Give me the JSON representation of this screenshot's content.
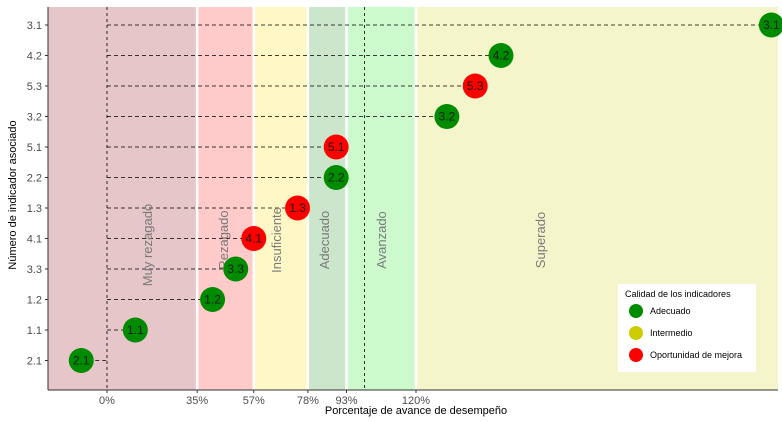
{
  "chart_data": {
    "type": "scatter",
    "title": "",
    "xlabel": "Porcentaje de avance de desempeño",
    "ylabel": "Número de indicador asociado",
    "x_tick_labels": [
      "0%",
      "35%",
      "57%",
      "78%",
      "93%",
      "120%"
    ],
    "x_ticks": [
      0,
      35,
      57,
      78,
      93,
      120
    ],
    "xlim": [
      -23,
      264
    ],
    "categories": [
      "2.1",
      "1.1",
      "1.2",
      "3.3",
      "4.1",
      "1.3",
      "2.2",
      "5.1",
      "3.2",
      "5.3",
      "4.2",
      "3.1"
    ],
    "bands": [
      {
        "label": "Muy rezagado",
        "from": -23,
        "to": 35,
        "color": "#e6c6c9"
      },
      {
        "label": "Rezagado",
        "from": 35,
        "to": 57,
        "color": "#ffcaca"
      },
      {
        "label": "Insuficiente",
        "from": 57,
        "to": 78,
        "color": "#fff8c6"
      },
      {
        "label": "Adecuado",
        "from": 78,
        "to": 93,
        "color": "#cce6cc"
      },
      {
        "label": "Avanzado",
        "from": 93,
        "to": 120,
        "color": "#ccfacc"
      },
      {
        "label": "Superado",
        "from": 120,
        "to": 264,
        "color": "#f5f5cc"
      }
    ],
    "points": [
      {
        "label": "2.1",
        "x": -10,
        "quality": "Adecuado"
      },
      {
        "label": "1.1",
        "x": 11,
        "quality": "Adecuado"
      },
      {
        "label": "1.2",
        "x": 41,
        "quality": "Adecuado"
      },
      {
        "label": "3.3",
        "x": 50,
        "quality": "Adecuado"
      },
      {
        "label": "4.1",
        "x": 57,
        "quality": "Oportunidad de mejora"
      },
      {
        "label": "1.3",
        "x": 74,
        "quality": "Oportunidad de mejora"
      },
      {
        "label": "2.2",
        "x": 89,
        "quality": "Adecuado"
      },
      {
        "label": "5.1",
        "x": 89,
        "quality": "Oportunidad de mejora"
      },
      {
        "label": "3.2",
        "x": 132,
        "quality": "Adecuado"
      },
      {
        "label": "5.3",
        "x": 143,
        "quality": "Oportunidad de mejora"
      },
      {
        "label": "4.2",
        "x": 153,
        "quality": "Adecuado"
      },
      {
        "label": "3.1",
        "x": 258,
        "quality": "Adecuado"
      }
    ],
    "legend": {
      "title": "Calidad de los indicadores",
      "placement": "bottom-right",
      "entries": [
        {
          "label": "Adecuado",
          "color": "#008b00"
        },
        {
          "label": "Intermedio",
          "color": "#cdcd00"
        },
        {
          "label": "Oportunidad de mejora",
          "color": "#ff0000"
        }
      ]
    },
    "grid": false
  }
}
